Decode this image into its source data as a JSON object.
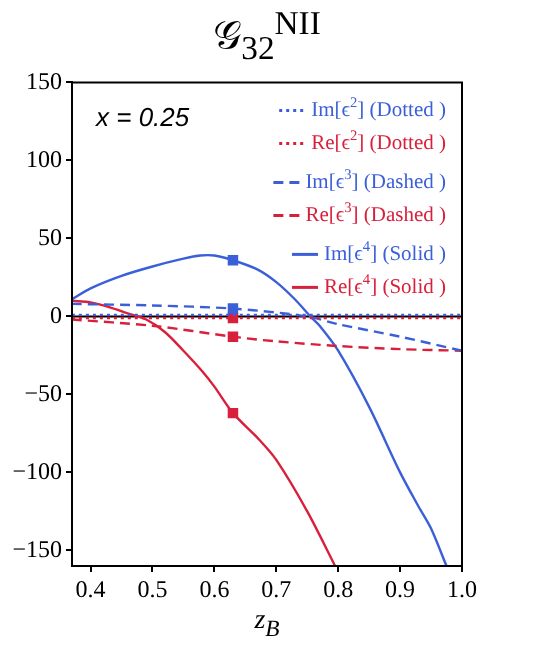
{
  "chart_data": {
    "type": "line",
    "title": "𝒢$_{32}$$^{NII}$",
    "xlabel": "z$_{B}$",
    "annotations": [
      "x = 0.25"
    ],
    "xlim": [
      0.37,
      1.0
    ],
    "xticks": [
      {
        "value": 0.4,
        "label": "0.4"
      },
      {
        "value": 0.5,
        "label": "0.5"
      },
      {
        "value": 0.6,
        "label": "0.6"
      },
      {
        "value": 0.7,
        "label": "0.7"
      },
      {
        "value": 0.8,
        "label": "0.8"
      },
      {
        "value": 0.9,
        "label": "0.9"
      },
      {
        "value": 1.0,
        "label": "1.0"
      }
    ],
    "ylim": [
      -160,
      150
    ],
    "yticks": [
      -150,
      -100,
      -50,
      0,
      50,
      100,
      150
    ],
    "grid": false,
    "legend": "top right",
    "ref_lines": [
      {
        "axis": "y",
        "value": 0,
        "color": "#000000"
      }
    ],
    "series": [
      {
        "name": "Im[ϵ$^{2}$] (Dotted )",
        "color": "#3a5fd9",
        "line_style": "dotted",
        "x": [
          0.37,
          0.63,
          1.0
        ],
        "values": [
          1,
          1,
          1
        ]
      },
      {
        "name": "Re[ϵ$^{2}$] (Dotted )",
        "color": "#d8203c",
        "line_style": "dotted",
        "x": [
          0.37,
          0.63,
          1.0
        ],
        "values": [
          -1,
          -1,
          -1
        ]
      },
      {
        "name": "Im[ϵ$^{3}$] (Dashed )",
        "color": "#3a5fd9",
        "line_style": "dashed",
        "x": [
          0.37,
          0.5,
          0.63,
          0.75,
          0.8,
          0.9,
          1.0
        ],
        "values": [
          8,
          7,
          5,
          0,
          -5,
          -13,
          -22
        ]
      },
      {
        "name": "Re[ϵ$^{3}$] (Dashed )",
        "color": "#d8203c",
        "line_style": "dashed",
        "x": [
          0.37,
          0.5,
          0.63,
          0.7,
          0.8,
          0.9,
          1.0
        ],
        "values": [
          -2,
          -6,
          -13,
          -16,
          -19,
          -21,
          -22
        ]
      },
      {
        "name": "Im[ϵ$^{4}$] (Solid )",
        "color": "#3a5fd9",
        "line_style": "solid",
        "x": [
          0.37,
          0.4,
          0.45,
          0.5,
          0.55,
          0.577,
          0.6,
          0.63,
          0.67,
          0.7,
          0.73,
          0.755,
          0.77,
          0.8,
          0.85,
          0.9,
          0.93,
          0.95,
          0.975
        ],
        "values": [
          11,
          18,
          26,
          32,
          37,
          39,
          39,
          36,
          30,
          22,
          11,
          0,
          -6,
          -22,
          -58,
          -100,
          -122,
          -136,
          -160
        ]
      },
      {
        "name": "Re[ϵ$^{4}$] (Solid )",
        "color": "#d8203c",
        "line_style": "solid",
        "x": [
          0.37,
          0.4,
          0.43,
          0.46,
          0.49,
          0.52,
          0.55,
          0.58,
          0.6,
          0.63,
          0.67,
          0.7,
          0.75,
          0.795
        ],
        "values": [
          10,
          9,
          6,
          2,
          -2,
          -10,
          -22,
          -35,
          -45,
          -62,
          -78,
          -92,
          -125,
          -160
        ]
      },
      {
        "type": "scatter",
        "marker": "square",
        "color": "#3a5fd9",
        "x": [
          0.63,
          0.63
        ],
        "values": [
          36,
          5
        ]
      },
      {
        "type": "scatter",
        "marker": "square",
        "color": "#d8203c",
        "x": [
          0.63,
          0.63,
          0.63
        ],
        "values": [
          -1,
          -13,
          -62
        ]
      }
    ]
  }
}
